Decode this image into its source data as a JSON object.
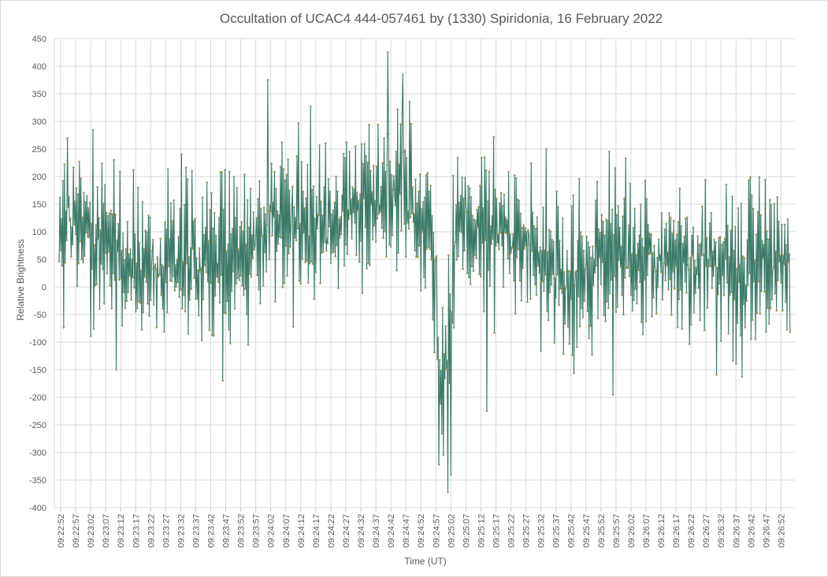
{
  "chart_data": {
    "type": "line",
    "title": "Occultation of UCAC4 444-057461 by (1330) Spiridonia, 16 February 2022",
    "xlabel": "Time (UT)",
    "ylabel": "Relative Brightness",
    "ylim": [
      -400,
      450
    ],
    "yticks": [
      450,
      400,
      350,
      300,
      250,
      200,
      150,
      100,
      50,
      0,
      -50,
      -100,
      -150,
      -200,
      -250,
      -300,
      -350,
      -400
    ],
    "xticks": [
      "09:22:52",
      "09:22:57",
      "09:23:02",
      "09:23:07",
      "09:23:12",
      "09:23:17",
      "09:23:22",
      "09:23:27",
      "09:23:32",
      "09:23:37",
      "09:23:42",
      "09:23:47",
      "09:23:52",
      "09:23:57",
      "09:24:02",
      "09:24:07",
      "09:24:12",
      "09:24:17",
      "09:24:22",
      "09:24:27",
      "09:24:32",
      "09:24:37",
      "09:24:42",
      "09:24:47",
      "09:24:52",
      "09:24:57",
      "09:25:02",
      "09:25:07",
      "09:25:12",
      "09:25:17",
      "09:25:22",
      "09:25:27",
      "09:25:32",
      "09:25:37",
      "09:25:42",
      "09:25:47",
      "09:25:52",
      "09:25:57",
      "09:26:02",
      "09:26:07",
      "09:26:12",
      "09:26:17",
      "09:26:22",
      "09:26:27",
      "09:26:32",
      "09:26:37",
      "09:26:42",
      "09:26:47",
      "09:26:52"
    ],
    "grid": true,
    "legend": "none",
    "line_color": "#3b7a68",
    "marker_color": "#c9a23f",
    "series": [
      {
        "sample_interval_s": 0.25,
        "x_start": "09:22:52",
        "trend": [
          {
            "t": "09:22:52",
            "y": 110
          },
          {
            "t": "09:22:57",
            "y": 140
          },
          {
            "t": "09:23:02",
            "y": 110
          },
          {
            "t": "09:23:07",
            "y": 90
          },
          {
            "t": "09:23:12",
            "y": 45
          },
          {
            "t": "09:23:17",
            "y": 30
          },
          {
            "t": "09:23:22",
            "y": 25
          },
          {
            "t": "09:23:27",
            "y": 30
          },
          {
            "t": "09:23:32",
            "y": 40
          },
          {
            "t": "09:23:37",
            "y": 50
          },
          {
            "t": "09:23:42",
            "y": 40
          },
          {
            "t": "09:23:47",
            "y": 45
          },
          {
            "t": "09:23:52",
            "y": 60
          },
          {
            "t": "09:23:57",
            "y": 90
          },
          {
            "t": "09:24:02",
            "y": 130
          },
          {
            "t": "09:24:07",
            "y": 120
          },
          {
            "t": "09:24:12",
            "y": 100
          },
          {
            "t": "09:24:17",
            "y": 95
          },
          {
            "t": "09:24:22",
            "y": 110
          },
          {
            "t": "09:24:27",
            "y": 130
          },
          {
            "t": "09:24:32",
            "y": 150
          },
          {
            "t": "09:24:37",
            "y": 160
          },
          {
            "t": "09:24:42",
            "y": 170
          },
          {
            "t": "09:24:47",
            "y": 160
          },
          {
            "t": "09:24:52",
            "y": 110
          },
          {
            "t": "09:24:57",
            "y": 60
          },
          {
            "t": "09:24:58",
            "y": -120
          },
          {
            "t": "09:25:00",
            "y": -160
          },
          {
            "t": "09:25:02",
            "y": -130
          },
          {
            "t": "09:25:03",
            "y": 70
          },
          {
            "t": "09:25:07",
            "y": 130
          },
          {
            "t": "09:25:12",
            "y": 110
          },
          {
            "t": "09:25:17",
            "y": 100
          },
          {
            "t": "09:25:22",
            "y": 90
          },
          {
            "t": "09:25:27",
            "y": 80
          },
          {
            "t": "09:25:32",
            "y": 60
          },
          {
            "t": "09:25:37",
            "y": 20
          },
          {
            "t": "09:25:42",
            "y": 10
          },
          {
            "t": "09:25:47",
            "y": 25
          },
          {
            "t": "09:25:52",
            "y": 55
          },
          {
            "t": "09:25:57",
            "y": 75
          },
          {
            "t": "09:26:02",
            "y": 50
          },
          {
            "t": "09:26:07",
            "y": 45
          },
          {
            "t": "09:26:12",
            "y": 55
          },
          {
            "t": "09:26:17",
            "y": 50
          },
          {
            "t": "09:26:22",
            "y": 40
          },
          {
            "t": "09:26:27",
            "y": 45
          },
          {
            "t": "09:26:32",
            "y": 40
          },
          {
            "t": "09:26:37",
            "y": 30
          },
          {
            "t": "09:26:42",
            "y": 40
          },
          {
            "t": "09:26:47",
            "y": 50
          },
          {
            "t": "09:26:52",
            "y": 55
          },
          {
            "t": "09:26:55",
            "y": 50
          }
        ],
        "scatter_amplitude": 85,
        "notable_values": [
          {
            "t": "09:24:41",
            "y": 425
          },
          {
            "t": "09:24:46",
            "y": 385
          },
          {
            "t": "09:24:01",
            "y": 375
          },
          {
            "t": "09:25:01",
            "y": -372
          },
          {
            "t": "09:25:02",
            "y": -340
          },
          {
            "t": "09:23:46",
            "y": -170
          },
          {
            "t": "09:25:56",
            "y": -195
          },
          {
            "t": "09:25:14",
            "y": -225
          }
        ]
      }
    ]
  }
}
